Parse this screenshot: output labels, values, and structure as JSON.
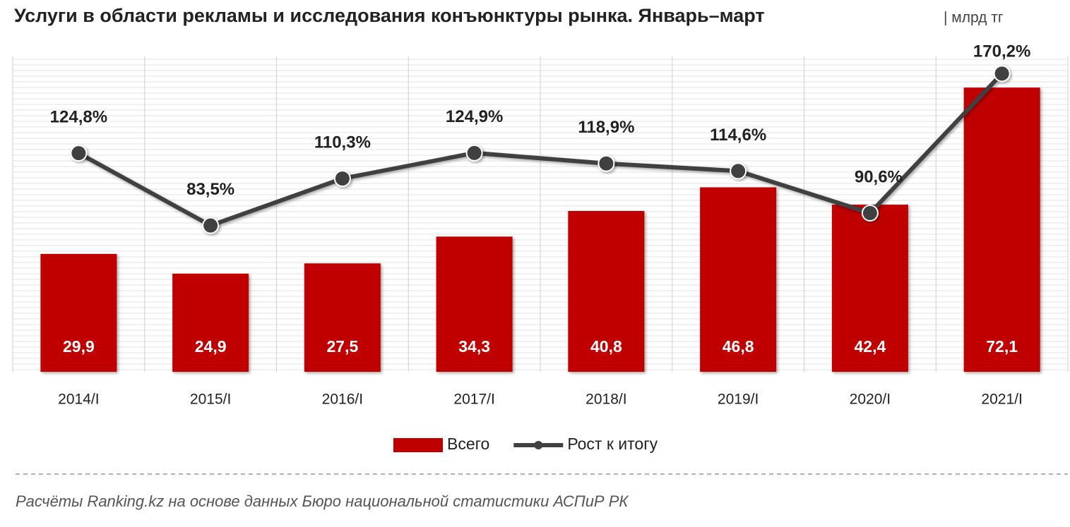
{
  "chart_data": {
    "type": "bar+line",
    "title": "Услуги в области рекламы и исследования конъюнктуры рынка. Январь–март",
    "subtitle": "| млрд тг",
    "categories": [
      "2014/I",
      "2015/I",
      "2016/I",
      "2017/I",
      "2018/I",
      "2019/I",
      "2020/I",
      "2021/I"
    ],
    "series": [
      {
        "name": "Всего",
        "type": "bar",
        "color": "#c00000",
        "values": [
          29.9,
          24.9,
          27.5,
          34.3,
          40.8,
          46.8,
          42.4,
          72.1
        ],
        "value_labels": [
          "29,9",
          "24,9",
          "27,5",
          "34,3",
          "40,8",
          "46,8",
          "42,4",
          "72,1"
        ]
      },
      {
        "name": "Рост к итогу",
        "type": "line",
        "axis": "y2",
        "color": "#404040",
        "values": [
          124.8,
          83.5,
          110.3,
          124.9,
          118.9,
          114.6,
          90.6,
          170.2
        ],
        "value_labels": [
          "124,8%",
          "83,5%",
          "110,3%",
          "124,9%",
          "118,9%",
          "114,6%",
          "90,6%",
          "170,2%"
        ]
      }
    ],
    "ylim": [
      0,
      80
    ],
    "y2lim": [
      0,
      180
    ],
    "grid": true,
    "legend": "bottom",
    "source": "Расчёты Ranking.kz на основе данных Бюро национальной статистики АСПиР РК"
  }
}
